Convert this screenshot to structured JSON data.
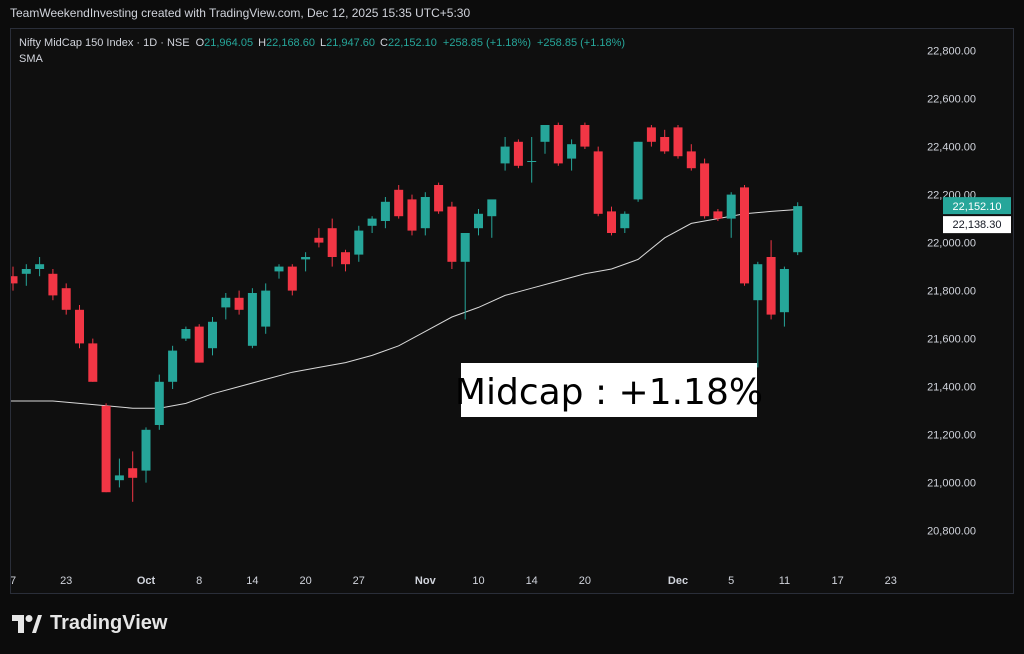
{
  "header": {
    "attribution": "TeamWeekendInvesting created with TradingView.com, Dec 12, 2025 15:35 UTC+5:30"
  },
  "legend": {
    "symbol": "Nifty MidCap 150 Index · 1D · NSE",
    "o_label": "O",
    "o_value": "21,964.05",
    "h_label": "H",
    "h_value": "22,168.60",
    "l_label": "L",
    "l_value": "21,947.60",
    "c_label": "C",
    "c_value": "22,152.10",
    "change": "+258.85 (+1.18%)",
    "change2": "+258.85 (+1.18%)",
    "indicator": "SMA"
  },
  "annotation": "Midcap : +1.18%",
  "price_badges": {
    "last": "22,152.10",
    "sma": "22,138.30"
  },
  "footer": {
    "brand": "TradingView"
  },
  "colors": {
    "up": "#26a69a",
    "down": "#f23645",
    "sma": "#d9d9d9",
    "axis_text": "#d1d4dc",
    "background": "#0f0f0f"
  },
  "chart_data": {
    "type": "candlestick",
    "y_ticks": [
      20800,
      21000,
      21200,
      21400,
      21600,
      21800,
      22000,
      22200,
      22400,
      22600,
      22800
    ],
    "y_tick_labels": [
      "20,800.00",
      "21,000.00",
      "21,200.00",
      "21,400.00",
      "21,600.00",
      "21,800.00",
      "22,000.00",
      "22,200.00",
      "22,400.00",
      "22,600.00",
      "22,800.00"
    ],
    "ylim": [
      20640,
      22890
    ],
    "x_labels": [
      {
        "i": 0,
        "label": "7",
        "bold": false
      },
      {
        "i": 4,
        "label": "23",
        "bold": false
      },
      {
        "i": 10,
        "label": "Oct",
        "bold": true
      },
      {
        "i": 14,
        "label": "8",
        "bold": false
      },
      {
        "i": 18,
        "label": "14",
        "bold": false
      },
      {
        "i": 22,
        "label": "20",
        "bold": false
      },
      {
        "i": 26,
        "label": "27",
        "bold": false
      },
      {
        "i": 31,
        "label": "Nov",
        "bold": true
      },
      {
        "i": 35,
        "label": "10",
        "bold": false
      },
      {
        "i": 39,
        "label": "14",
        "bold": false
      },
      {
        "i": 43,
        "label": "20",
        "bold": false
      },
      {
        "i": 50,
        "label": "Dec",
        "bold": true
      },
      {
        "i": 54,
        "label": "5",
        "bold": false
      },
      {
        "i": 58,
        "label": "11",
        "bold": false
      },
      {
        "i": 62,
        "label": "17",
        "bold": false
      },
      {
        "i": 66,
        "label": "23",
        "bold": false
      }
    ],
    "candles": [
      {
        "o": 21860,
        "h": 21900,
        "l": 21800,
        "c": 21830
      },
      {
        "o": 21870,
        "h": 21910,
        "l": 21820,
        "c": 21890
      },
      {
        "o": 21890,
        "h": 21940,
        "l": 21860,
        "c": 21910
      },
      {
        "o": 21870,
        "h": 21890,
        "l": 21760,
        "c": 21780
      },
      {
        "o": 21810,
        "h": 21830,
        "l": 21700,
        "c": 21720
      },
      {
        "o": 21720,
        "h": 21740,
        "l": 21560,
        "c": 21580
      },
      {
        "o": 21580,
        "h": 21600,
        "l": 21420,
        "c": 21420
      },
      {
        "o": 21320,
        "h": 21330,
        "l": 20960,
        "c": 20960
      },
      {
        "o": 21010,
        "h": 21100,
        "l": 20980,
        "c": 21030
      },
      {
        "o": 21060,
        "h": 21130,
        "l": 20920,
        "c": 21020
      },
      {
        "o": 21050,
        "h": 21230,
        "l": 21000,
        "c": 21220
      },
      {
        "o": 21240,
        "h": 21450,
        "l": 21220,
        "c": 21420
      },
      {
        "o": 21420,
        "h": 21570,
        "l": 21390,
        "c": 21550
      },
      {
        "o": 21600,
        "h": 21650,
        "l": 21590,
        "c": 21640
      },
      {
        "o": 21650,
        "h": 21660,
        "l": 21500,
        "c": 21500
      },
      {
        "o": 21560,
        "h": 21690,
        "l": 21530,
        "c": 21670
      },
      {
        "o": 21730,
        "h": 21790,
        "l": 21680,
        "c": 21770
      },
      {
        "o": 21770,
        "h": 21800,
        "l": 21700,
        "c": 21720
      },
      {
        "o": 21570,
        "h": 21810,
        "l": 21560,
        "c": 21790
      },
      {
        "o": 21650,
        "h": 21830,
        "l": 21620,
        "c": 21800
      },
      {
        "o": 21880,
        "h": 21910,
        "l": 21850,
        "c": 21900
      },
      {
        "o": 21900,
        "h": 21910,
        "l": 21780,
        "c": 21800
      },
      {
        "o": 21930,
        "h": 21960,
        "l": 21880,
        "c": 21940
      },
      {
        "o": 22020,
        "h": 22060,
        "l": 21980,
        "c": 22000
      },
      {
        "o": 22060,
        "h": 22100,
        "l": 21900,
        "c": 21940
      },
      {
        "o": 21960,
        "h": 21970,
        "l": 21880,
        "c": 21910
      },
      {
        "o": 21950,
        "h": 22070,
        "l": 21920,
        "c": 22050
      },
      {
        "o": 22070,
        "h": 22110,
        "l": 22040,
        "c": 22100
      },
      {
        "o": 22090,
        "h": 22190,
        "l": 22060,
        "c": 22170
      },
      {
        "o": 22220,
        "h": 22240,
        "l": 22100,
        "c": 22110
      },
      {
        "o": 22180,
        "h": 22200,
        "l": 22030,
        "c": 22050
      },
      {
        "o": 22060,
        "h": 22210,
        "l": 22030,
        "c": 22190
      },
      {
        "o": 22240,
        "h": 22250,
        "l": 22120,
        "c": 22130
      },
      {
        "o": 22150,
        "h": 22170,
        "l": 21890,
        "c": 21920
      },
      {
        "o": 21920,
        "h": 22040,
        "l": 21680,
        "c": 22040
      },
      {
        "o": 22060,
        "h": 22140,
        "l": 22030,
        "c": 22120
      },
      {
        "o": 22110,
        "h": 22170,
        "l": 22020,
        "c": 22180
      },
      {
        "o": 22330,
        "h": 22440,
        "l": 22300,
        "c": 22400
      },
      {
        "o": 22420,
        "h": 22430,
        "l": 22310,
        "c": 22320
      },
      {
        "o": 22340,
        "h": 22440,
        "l": 22250,
        "c": 22340
      },
      {
        "o": 22420,
        "h": 22470,
        "l": 22370,
        "c": 22490
      },
      {
        "o": 22490,
        "h": 22500,
        "l": 22320,
        "c": 22330
      },
      {
        "o": 22350,
        "h": 22430,
        "l": 22300,
        "c": 22410
      },
      {
        "o": 22490,
        "h": 22500,
        "l": 22390,
        "c": 22400
      },
      {
        "o": 22380,
        "h": 22400,
        "l": 22110,
        "c": 22120
      },
      {
        "o": 22130,
        "h": 22150,
        "l": 22030,
        "c": 22040
      },
      {
        "o": 22060,
        "h": 22130,
        "l": 22040,
        "c": 22120
      },
      {
        "o": 22180,
        "h": 22420,
        "l": 22170,
        "c": 22420
      },
      {
        "o": 22480,
        "h": 22490,
        "l": 22400,
        "c": 22420
      },
      {
        "o": 22440,
        "h": 22470,
        "l": 22370,
        "c": 22380
      },
      {
        "o": 22480,
        "h": 22490,
        "l": 22350,
        "c": 22360
      },
      {
        "o": 22380,
        "h": 22410,
        "l": 22300,
        "c": 22310
      },
      {
        "o": 22330,
        "h": 22350,
        "l": 22100,
        "c": 22110
      },
      {
        "o": 22130,
        "h": 22140,
        "l": 22090,
        "c": 22100
      },
      {
        "o": 22100,
        "h": 22210,
        "l": 22020,
        "c": 22200
      },
      {
        "o": 22230,
        "h": 22240,
        "l": 21820,
        "c": 21830
      },
      {
        "o": 21760,
        "h": 21920,
        "l": 21480,
        "c": 21910
      },
      {
        "o": 21940,
        "h": 22010,
        "l": 21680,
        "c": 21700
      },
      {
        "o": 21710,
        "h": 21900,
        "l": 21650,
        "c": 21890
      },
      {
        "o": 21960,
        "h": 22168,
        "l": 21948,
        "c": 22152
      }
    ],
    "sma": [
      [
        -0.5,
        21340
      ],
      [
        0,
        21340
      ],
      [
        3,
        21340
      ],
      [
        5,
        21330
      ],
      [
        7,
        21320
      ],
      [
        9,
        21310
      ],
      [
        11,
        21310
      ],
      [
        13,
        21330
      ],
      [
        15,
        21370
      ],
      [
        17,
        21400
      ],
      [
        19,
        21430
      ],
      [
        21,
        21460
      ],
      [
        23,
        21480
      ],
      [
        25,
        21500
      ],
      [
        27,
        21530
      ],
      [
        29,
        21570
      ],
      [
        31,
        21630
      ],
      [
        33,
        21690
      ],
      [
        35,
        21730
      ],
      [
        37,
        21780
      ],
      [
        39,
        21810
      ],
      [
        41,
        21840
      ],
      [
        43,
        21870
      ],
      [
        45,
        21890
      ],
      [
        47,
        21930
      ],
      [
        49,
        22020
      ],
      [
        51,
        22080
      ],
      [
        53,
        22100
      ],
      [
        55,
        22120
      ],
      [
        57,
        22130
      ],
      [
        59,
        22138
      ]
    ]
  }
}
